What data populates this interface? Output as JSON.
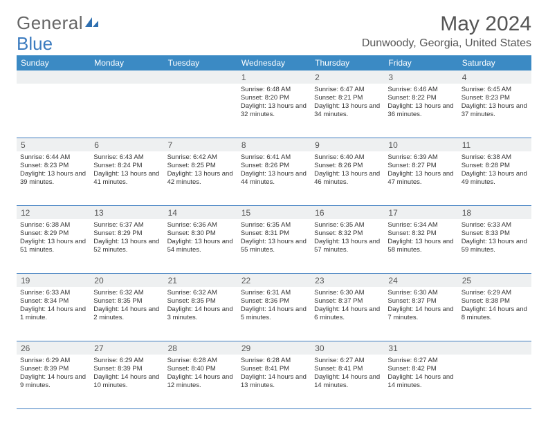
{
  "brand": {
    "part1": "General",
    "part2": "Blue"
  },
  "title": "May 2024",
  "location": "Dunwoody, Georgia, United States",
  "colors": {
    "header_bg": "#3b8ac4",
    "rule": "#3b7bbf",
    "daynum_bg": "#eef0f1",
    "text": "#333333"
  },
  "dow": [
    "Sunday",
    "Monday",
    "Tuesday",
    "Wednesday",
    "Thursday",
    "Friday",
    "Saturday"
  ],
  "weeks": [
    {
      "nums": [
        "",
        "",
        "",
        "1",
        "2",
        "3",
        "4"
      ],
      "cells": [
        null,
        null,
        null,
        {
          "sunrise": "6:48 AM",
          "sunset": "8:20 PM",
          "dl": "13 hours and 32 minutes."
        },
        {
          "sunrise": "6:47 AM",
          "sunset": "8:21 PM",
          "dl": "13 hours and 34 minutes."
        },
        {
          "sunrise": "6:46 AM",
          "sunset": "8:22 PM",
          "dl": "13 hours and 36 minutes."
        },
        {
          "sunrise": "6:45 AM",
          "sunset": "8:23 PM",
          "dl": "13 hours and 37 minutes."
        }
      ]
    },
    {
      "nums": [
        "5",
        "6",
        "7",
        "8",
        "9",
        "10",
        "11"
      ],
      "cells": [
        {
          "sunrise": "6:44 AM",
          "sunset": "8:23 PM",
          "dl": "13 hours and 39 minutes."
        },
        {
          "sunrise": "6:43 AM",
          "sunset": "8:24 PM",
          "dl": "13 hours and 41 minutes."
        },
        {
          "sunrise": "6:42 AM",
          "sunset": "8:25 PM",
          "dl": "13 hours and 42 minutes."
        },
        {
          "sunrise": "6:41 AM",
          "sunset": "8:26 PM",
          "dl": "13 hours and 44 minutes."
        },
        {
          "sunrise": "6:40 AM",
          "sunset": "8:26 PM",
          "dl": "13 hours and 46 minutes."
        },
        {
          "sunrise": "6:39 AM",
          "sunset": "8:27 PM",
          "dl": "13 hours and 47 minutes."
        },
        {
          "sunrise": "6:38 AM",
          "sunset": "8:28 PM",
          "dl": "13 hours and 49 minutes."
        }
      ]
    },
    {
      "nums": [
        "12",
        "13",
        "14",
        "15",
        "16",
        "17",
        "18"
      ],
      "cells": [
        {
          "sunrise": "6:38 AM",
          "sunset": "8:29 PM",
          "dl": "13 hours and 51 minutes."
        },
        {
          "sunrise": "6:37 AM",
          "sunset": "8:29 PM",
          "dl": "13 hours and 52 minutes."
        },
        {
          "sunrise": "6:36 AM",
          "sunset": "8:30 PM",
          "dl": "13 hours and 54 minutes."
        },
        {
          "sunrise": "6:35 AM",
          "sunset": "8:31 PM",
          "dl": "13 hours and 55 minutes."
        },
        {
          "sunrise": "6:35 AM",
          "sunset": "8:32 PM",
          "dl": "13 hours and 57 minutes."
        },
        {
          "sunrise": "6:34 AM",
          "sunset": "8:32 PM",
          "dl": "13 hours and 58 minutes."
        },
        {
          "sunrise": "6:33 AM",
          "sunset": "8:33 PM",
          "dl": "13 hours and 59 minutes."
        }
      ]
    },
    {
      "nums": [
        "19",
        "20",
        "21",
        "22",
        "23",
        "24",
        "25"
      ],
      "cells": [
        {
          "sunrise": "6:33 AM",
          "sunset": "8:34 PM",
          "dl": "14 hours and 1 minute."
        },
        {
          "sunrise": "6:32 AM",
          "sunset": "8:35 PM",
          "dl": "14 hours and 2 minutes."
        },
        {
          "sunrise": "6:32 AM",
          "sunset": "8:35 PM",
          "dl": "14 hours and 3 minutes."
        },
        {
          "sunrise": "6:31 AM",
          "sunset": "8:36 PM",
          "dl": "14 hours and 5 minutes."
        },
        {
          "sunrise": "6:30 AM",
          "sunset": "8:37 PM",
          "dl": "14 hours and 6 minutes."
        },
        {
          "sunrise": "6:30 AM",
          "sunset": "8:37 PM",
          "dl": "14 hours and 7 minutes."
        },
        {
          "sunrise": "6:29 AM",
          "sunset": "8:38 PM",
          "dl": "14 hours and 8 minutes."
        }
      ]
    },
    {
      "nums": [
        "26",
        "27",
        "28",
        "29",
        "30",
        "31",
        ""
      ],
      "cells": [
        {
          "sunrise": "6:29 AM",
          "sunset": "8:39 PM",
          "dl": "14 hours and 9 minutes."
        },
        {
          "sunrise": "6:29 AM",
          "sunset": "8:39 PM",
          "dl": "14 hours and 10 minutes."
        },
        {
          "sunrise": "6:28 AM",
          "sunset": "8:40 PM",
          "dl": "14 hours and 12 minutes."
        },
        {
          "sunrise": "6:28 AM",
          "sunset": "8:41 PM",
          "dl": "14 hours and 13 minutes."
        },
        {
          "sunrise": "6:27 AM",
          "sunset": "8:41 PM",
          "dl": "14 hours and 14 minutes."
        },
        {
          "sunrise": "6:27 AM",
          "sunset": "8:42 PM",
          "dl": "14 hours and 14 minutes."
        },
        null
      ]
    }
  ],
  "labels": {
    "sunrise": "Sunrise: ",
    "sunset": "Sunset: ",
    "daylight": "Daylight: "
  }
}
